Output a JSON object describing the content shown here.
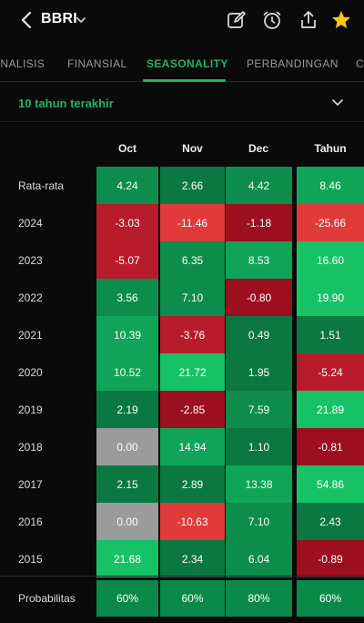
{
  "header": {
    "ticker": "BBRI",
    "icons": [
      "back-chevron-icon",
      "chevron-down-icon",
      "edit-icon",
      "alarm-icon",
      "share-icon",
      "star-icon"
    ]
  },
  "tabs": [
    {
      "label": "ANALISIS",
      "active": false
    },
    {
      "label": "FINANSIAL",
      "active": false
    },
    {
      "label": "SEASONALITY",
      "active": true
    },
    {
      "label": "PERBANDINGAN",
      "active": false
    },
    {
      "label": "C",
      "active": false
    }
  ],
  "period": {
    "label": "10 tahun terakhir"
  },
  "table": {
    "columns": [
      "Oct",
      "Nov",
      "Dec",
      "Tahun"
    ],
    "rows": [
      {
        "label": "Rata-rata",
        "values": [
          "4.24",
          "2.66",
          "4.42",
          "8.46"
        ]
      },
      {
        "label": "2024",
        "values": [
          "-3.03",
          "-11.46",
          "-1.18",
          "-25.66"
        ]
      },
      {
        "label": "2023",
        "values": [
          "-5.07",
          "6.35",
          "8.53",
          "16.60"
        ]
      },
      {
        "label": "2022",
        "values": [
          "3.56",
          "7.10",
          "-0.80",
          "19.90"
        ]
      },
      {
        "label": "2021",
        "values": [
          "10.39",
          "-3.76",
          "0.49",
          "1.51"
        ]
      },
      {
        "label": "2020",
        "values": [
          "10.52",
          "21.72",
          "1.95",
          "-5.24"
        ]
      },
      {
        "label": "2019",
        "values": [
          "2.19",
          "-2.85",
          "7.59",
          "21.89"
        ]
      },
      {
        "label": "2018",
        "values": [
          "0.00",
          "14.94",
          "1.10",
          "-0.81"
        ]
      },
      {
        "label": "2017",
        "values": [
          "2.15",
          "2.89",
          "13.38",
          "54.86"
        ]
      },
      {
        "label": "2016",
        "values": [
          "0.00",
          "-10.63",
          "7.10",
          "2.43"
        ]
      },
      {
        "label": "2015",
        "values": [
          "21.68",
          "2.34",
          "6.04",
          "-0.89"
        ]
      }
    ],
    "probabilitas": {
      "label": "Probabilitas",
      "values": [
        "60%",
        "60%",
        "80%",
        "60%"
      ]
    }
  },
  "colors": {
    "accent": "#20b46b",
    "star": "#f5c518",
    "zero": "#9b9b9b"
  }
}
